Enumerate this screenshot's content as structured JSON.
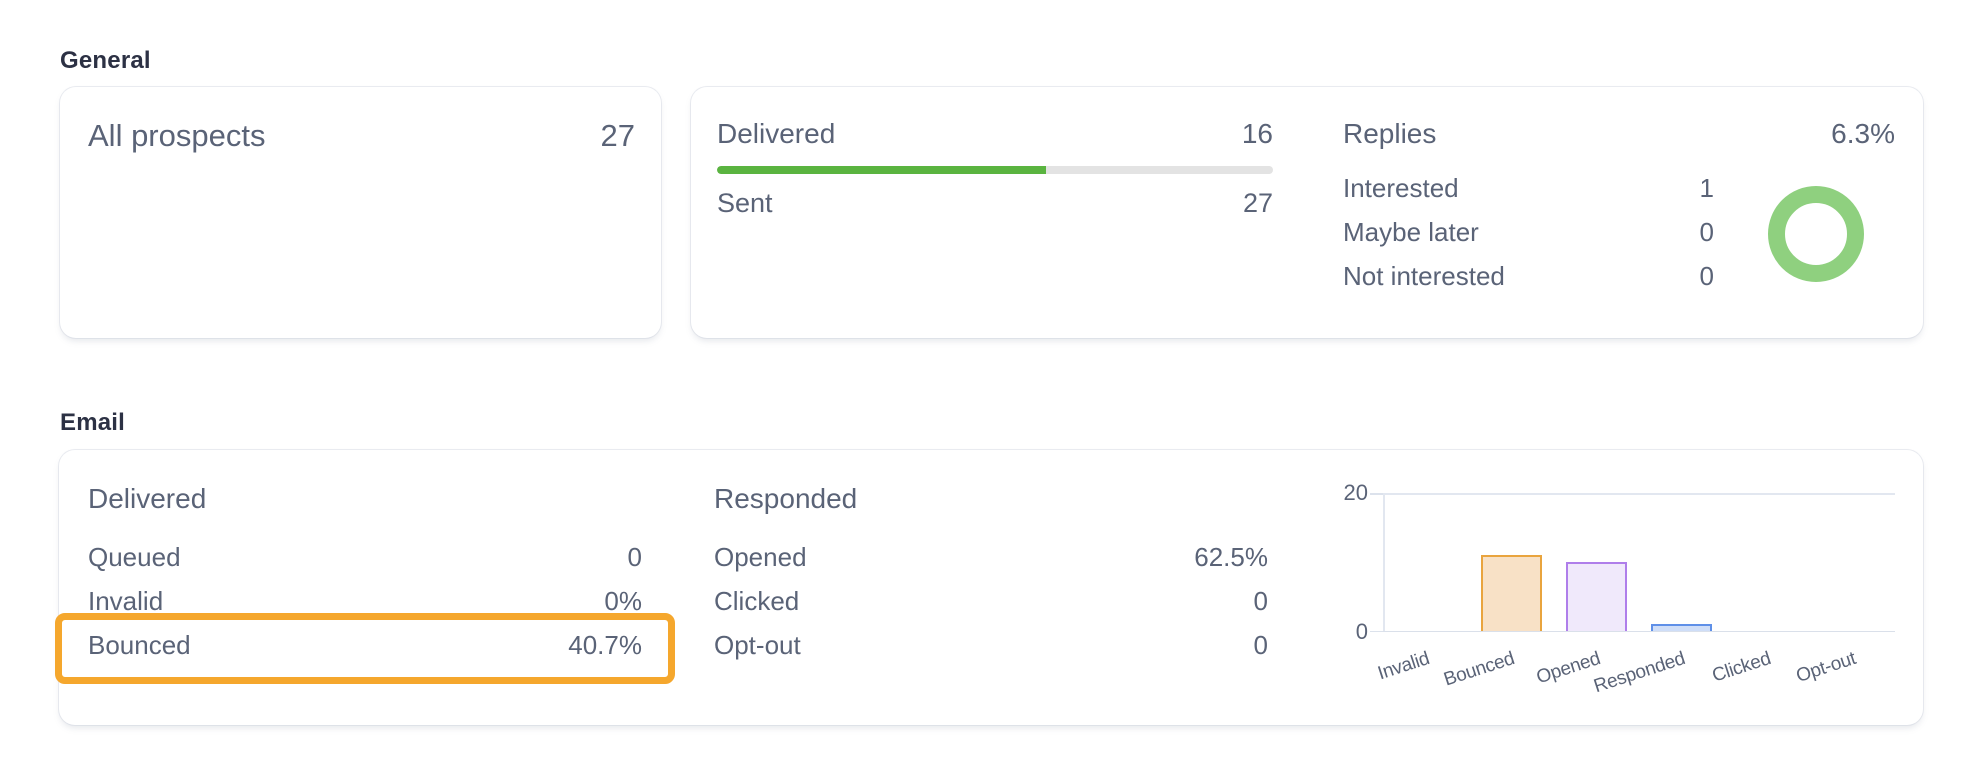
{
  "sections": {
    "general": {
      "title": "General"
    },
    "email": {
      "title": "Email"
    }
  },
  "general": {
    "prospects_card": {
      "label": "All prospects",
      "value": "27"
    },
    "delivery_card": {
      "delivered_label": "Delivered",
      "delivered_value": "16",
      "sent_label": "Sent",
      "sent_value": "27",
      "progress_percent": 59.26,
      "progress_color": "#5AB440",
      "track_color": "#E3E3E3"
    },
    "replies_card": {
      "title": "Replies",
      "rate": "6.3%",
      "rows": [
        {
          "label": "Interested",
          "value": "1"
        },
        {
          "label": "Maybe later",
          "value": "0"
        },
        {
          "label": "Not interested",
          "value": "0"
        }
      ],
      "donut_color": "#8FD07F"
    }
  },
  "email": {
    "delivered": {
      "title": "Delivered",
      "rows": [
        {
          "label": "Queued",
          "value": "0"
        },
        {
          "label": "Invalid",
          "value": "0%"
        },
        {
          "label": "Bounced",
          "value": "40.7%"
        }
      ]
    },
    "responded": {
      "title": "Responded",
      "rows": [
        {
          "label": "Opened",
          "value": "62.5%"
        },
        {
          "label": "Clicked",
          "value": "0"
        },
        {
          "label": "Opt-out",
          "value": "0"
        }
      ]
    },
    "highlight_color": "#F5A72D",
    "highlighted_row": "Bounced"
  },
  "chart_data": {
    "type": "bar",
    "categories": [
      "Invalid",
      "Bounced",
      "Opened",
      "Responded",
      "Clicked",
      "Opt-out"
    ],
    "values": [
      0,
      11,
      10,
      1,
      0,
      0
    ],
    "bar_border_colors": [
      "#E9A43E",
      "#E9A43E",
      "#AF7EEA",
      "#5F90E8",
      "#5F90E8",
      "#5F90E8"
    ],
    "bar_fill_colors": [
      "#F8E1C6",
      "#F8E1C6",
      "#F0E9FB",
      "#CFDEF8",
      "#CFDEF8",
      "#CFDEF8"
    ],
    "title": "",
    "xlabel": "",
    "ylabel": "",
    "ylim": [
      0,
      20
    ],
    "yticks": [
      "20",
      "0"
    ],
    "grid": true,
    "legend": false,
    "x_label_rotation_deg": -18
  }
}
